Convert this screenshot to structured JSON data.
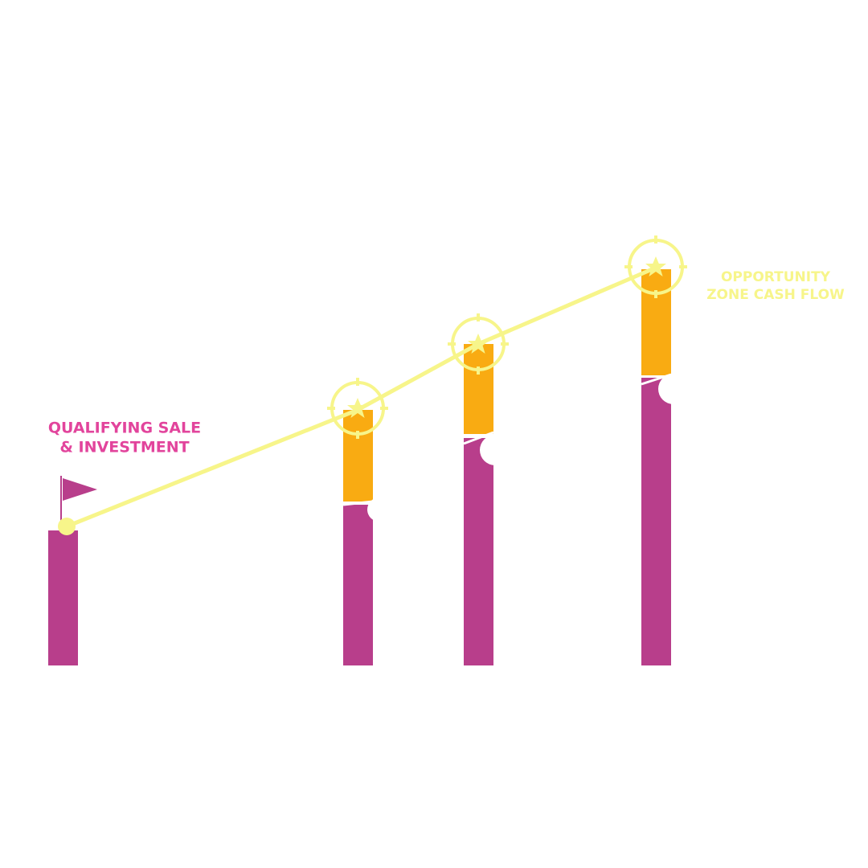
{
  "labels": [
    {
      "lines": [
        "QUALIFYING SALE",
        "& INVESTMENT"
      ]
    },
    {
      "lines": [
        "OPPORTUNITY",
        "ZONE CASH FLOW"
      ]
    }
  ]
}
